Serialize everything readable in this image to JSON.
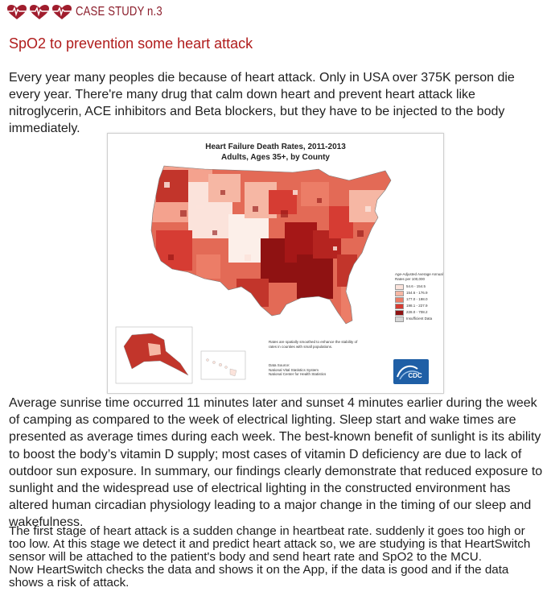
{
  "header": {
    "title": "CASE STUDY n.3",
    "icon": "heart-ecg-icon",
    "accent": "#8b1c2a"
  },
  "subtitle": "SpO2 to prevention some heart attack",
  "intro": "Every year many peoples die because of heart attack. Only in USA over 375K person die every year. There're many drug that calm down heart and prevent heart attack like nitroglycerin, ACE inhibitors and Beta blockers, but they have to be injected to the body immediately.",
  "map": {
    "title_line1": "Heart Failure Death Rates, 2011-2013",
    "title_line2": "Adults, Ages 35+, by County",
    "legend_title": "Age-Adjusted Average Annual Rates per 100,000",
    "legend": [
      {
        "label": "54.6 - 154.5",
        "color": "#fbe3db"
      },
      {
        "label": "154.6 - 176.9",
        "color": "#f6b7a4"
      },
      {
        "label": "177.0 - 198.0",
        "color": "#ec7d67"
      },
      {
        "label": "198.1 - 227.9",
        "color": "#d63c33"
      },
      {
        "label": "228.0 - 708.2",
        "color": "#8f1212"
      },
      {
        "label": "Insufficient Data",
        "color": "#d6d6d6"
      }
    ],
    "note": "Rates are spatially smoothed to enhance the stability of rates in counties with small populations.",
    "source_1": "Data Source:",
    "source_2": "National Vital Statistics System",
    "source_3": "National Center for Health Statistics",
    "logo": "CDC"
  },
  "body_paragraph": "Average sunrise time occurred 11 minutes later and sunset 4 minutes earlier during the week of camping as compared to the week of electrical lighting. Sleep start and wake times are presented as average times during each week. The best-known benefit of sunlight is its ability to boost the body’s vitamin D supply; most cases of vitamin D deficiency are due to lack of outdoor sun exposure. In summary, our findings clearly demonstrate that reduced exposure to sunlight and the widespread use of electrical lighting in the constructed environment has altered human circadian physiology leading to a major change in the timing of our sleep and wakefulness.",
  "stage_paragraph": "The first stage of heart attack is a sudden change in heartbeat rate. suddenly it goes too high or too low. At this stage we detect it and predict heart attack so, we are studying is that HeartSwitch sensor will be attached to the patient's body and send heart rate and SpO2 to the MCU.",
  "app_paragraph": "Now HeartSwitch checks the data and shows it on the App, if the data is good and if the data shows a risk of attack."
}
